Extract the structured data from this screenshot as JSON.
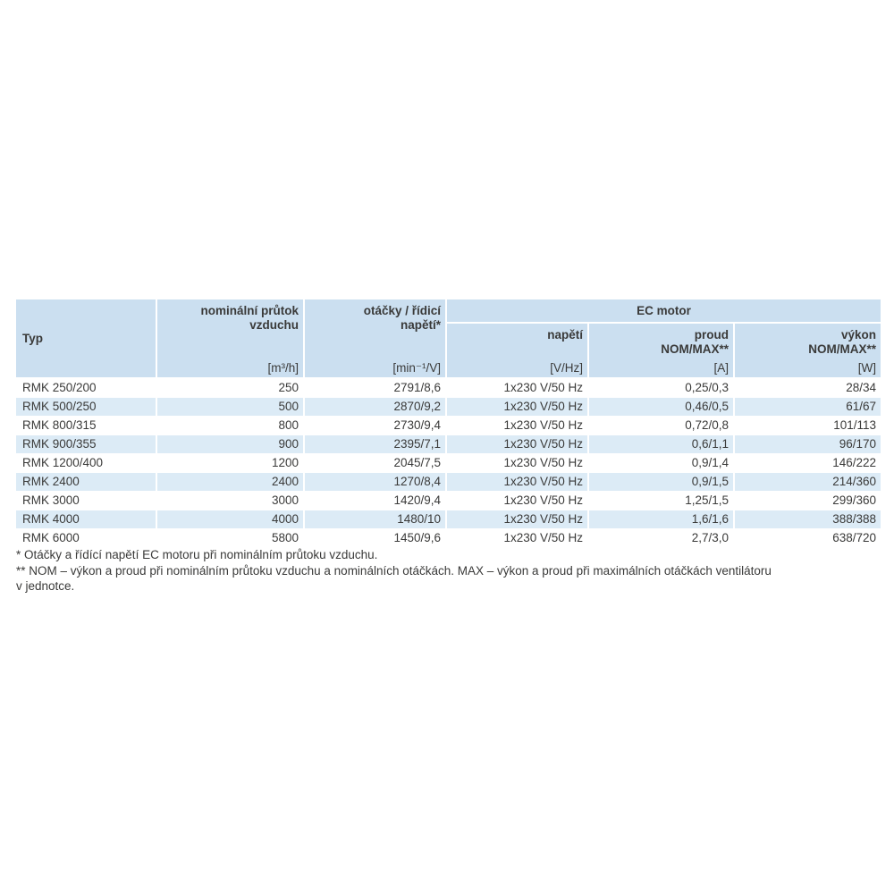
{
  "colors": {
    "header-blue": "#cbdff0",
    "stripe-blue": "#dcebf6",
    "text-dark": "#3a3a39"
  },
  "table": {
    "group_label": "EC motor",
    "columns": [
      {
        "label": "Typ",
        "unit": ""
      },
      {
        "label": "nominální průtok\nvzduchu",
        "unit": "[m³/h]"
      },
      {
        "label": "otáčky / řídicí\nnapětí*",
        "unit": "[min⁻¹/V]"
      },
      {
        "label": "napětí",
        "unit": "[V/Hz]"
      },
      {
        "label": "proud\nNOM/MAX**",
        "unit": "[A]"
      },
      {
        "label": "výkon\nNOM/MAX**",
        "unit": "[W]"
      }
    ],
    "rows": [
      [
        "RMK 250/200",
        "250",
        "2791/8,6",
        "1x230 V/50 Hz",
        "0,25/0,3",
        "28/34"
      ],
      [
        "RMK 500/250",
        "500",
        "2870/9,2",
        "1x230 V/50 Hz",
        "0,46/0,5",
        "61/67"
      ],
      [
        "RMK 800/315",
        "800",
        "2730/9,4",
        "1x230 V/50 Hz",
        "0,72/0,8",
        "101/113"
      ],
      [
        "RMK 900/355",
        "900",
        "2395/7,1",
        "1x230 V/50 Hz",
        "0,6/1,1",
        "96/170"
      ],
      [
        "RMK 1200/400",
        "1200",
        "2045/7,5",
        "1x230 V/50 Hz",
        "0,9/1,4",
        "146/222"
      ],
      [
        "RMK 2400",
        "2400",
        "1270/8,4",
        "1x230 V/50 Hz",
        "0,9/1,5",
        "214/360"
      ],
      [
        "RMK 3000",
        "3000",
        "1420/9,4",
        "1x230 V/50 Hz",
        "1,25/1,5",
        "299/360"
      ],
      [
        "RMK 4000",
        "4000",
        "1480/10",
        "1x230 V/50 Hz",
        "1,6/1,6",
        "388/388"
      ],
      [
        "RMK 6000",
        "5800",
        "1450/9,6",
        "1x230 V/50 Hz",
        "2,7/3,0",
        "638/720"
      ]
    ]
  },
  "footnotes": [
    "* Otáčky a řídící napětí EC motoru při nominálním průtoku vzduchu.",
    "** NOM – výkon a proud při nominálním průtoku vzduchu a nominálních otáčkách. MAX – výkon a proud při maximálních otáčkách ventilátoru\nv jednotce."
  ]
}
